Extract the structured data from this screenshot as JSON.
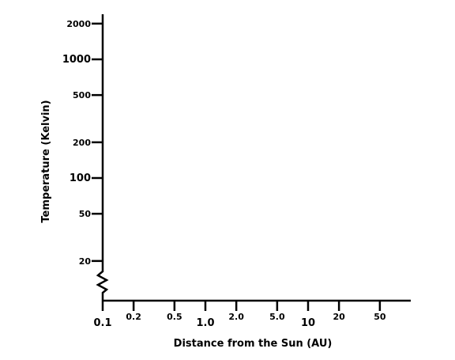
{
  "chart_data": {
    "type": "line",
    "title": "",
    "xlabel": "Distance from the Sun (AU)",
    "ylabel": "Temperature (Kelvin)",
    "x_scale": "log",
    "y_scale": "log",
    "xlim": [
      0.1,
      100
    ],
    "ylim": [
      20,
      2000
    ],
    "y_axis_break": true,
    "grid": false,
    "x_ticks": [
      {
        "value": 0.1,
        "label": "0.1",
        "major": true
      },
      {
        "value": 0.2,
        "label": "0.2",
        "major": false
      },
      {
        "value": 0.5,
        "label": "0.5",
        "major": false
      },
      {
        "value": 1.0,
        "label": "1.0",
        "major": true
      },
      {
        "value": 2.0,
        "label": "2.0",
        "major": false
      },
      {
        "value": 5.0,
        "label": "5.0",
        "major": false
      },
      {
        "value": 10,
        "label": "10",
        "major": true
      },
      {
        "value": 20,
        "label": "20",
        "major": false
      },
      {
        "value": 50,
        "label": "50",
        "major": false
      }
    ],
    "y_ticks": [
      {
        "value": 2000,
        "label": "2000",
        "major": false
      },
      {
        "value": 1000,
        "label": "1000",
        "major": true
      },
      {
        "value": 500,
        "label": "500",
        "major": false
      },
      {
        "value": 200,
        "label": "200",
        "major": false
      },
      {
        "value": 100,
        "label": "100",
        "major": true
      },
      {
        "value": 50,
        "label": "50",
        "major": false
      },
      {
        "value": 20,
        "label": "20",
        "major": false
      }
    ],
    "series": []
  }
}
